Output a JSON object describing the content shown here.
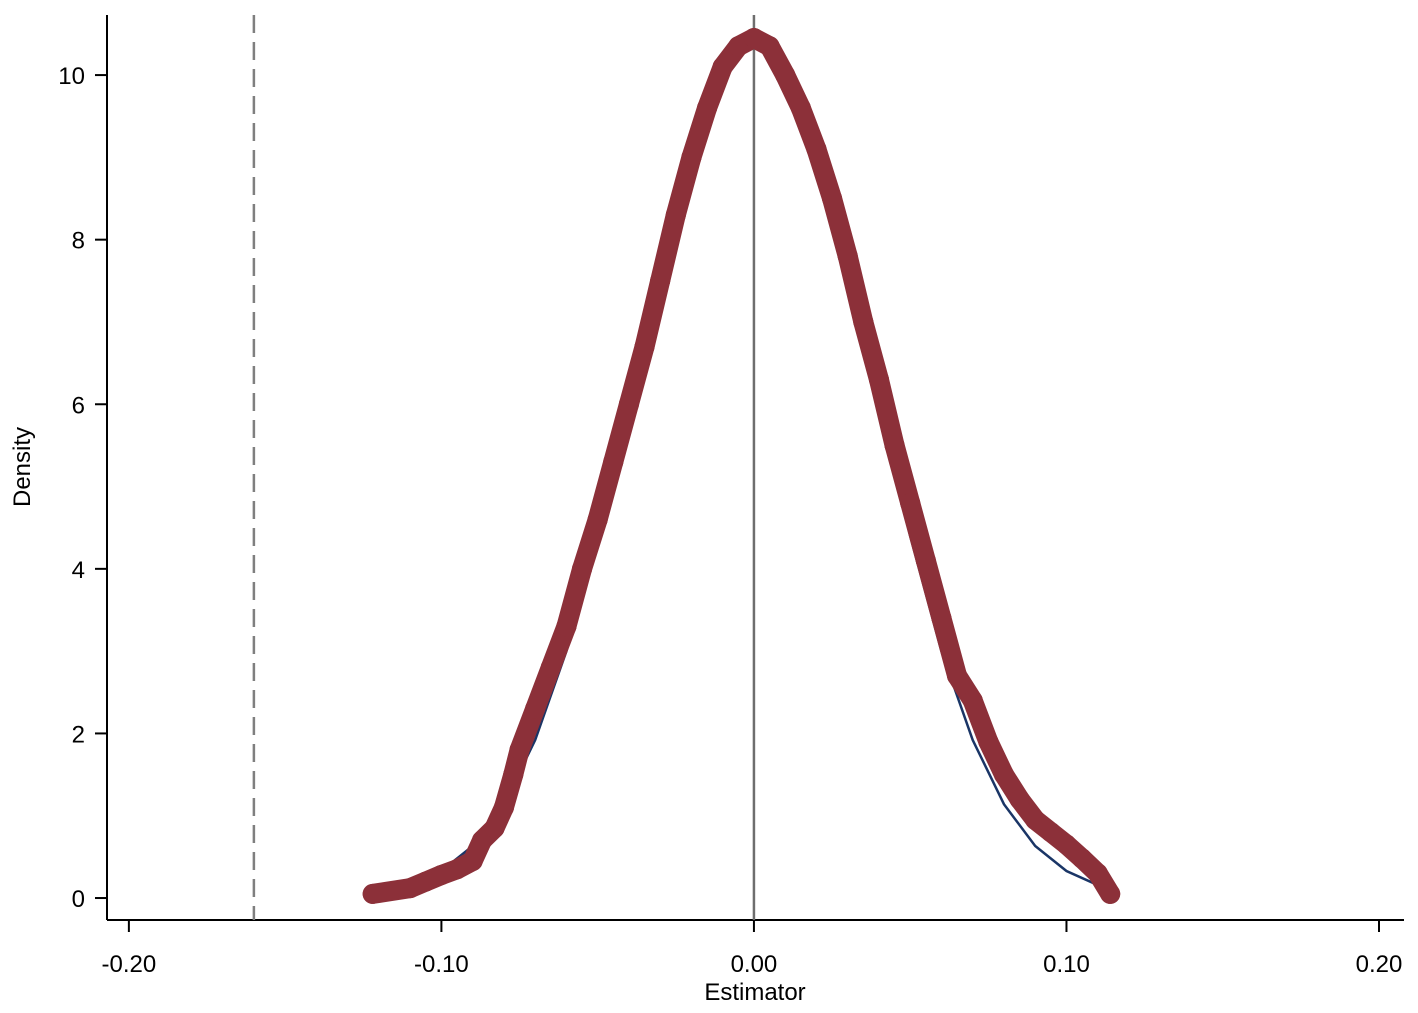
{
  "chart_data": {
    "type": "scatter",
    "xlabel": "Estimator",
    "ylabel": "Density",
    "xlim": [
      -0.207,
      0.208
    ],
    "ylim": [
      -0.267,
      10.73
    ],
    "xticks": [
      {
        "value": -0.2,
        "label": "-0.20"
      },
      {
        "value": -0.1,
        "label": "-0.10"
      },
      {
        "value": 0,
        "label": "0.00"
      },
      {
        "value": 0.1,
        "label": "0.10"
      },
      {
        "value": 0.2,
        "label": "0.20"
      }
    ],
    "yticks": [
      0,
      2,
      4,
      6,
      8,
      10
    ],
    "grid": false,
    "vlines": [
      {
        "x": -0.16,
        "style": "dashed",
        "color": "#7f7f7f"
      },
      {
        "x": 0,
        "style": "solid",
        "color": "#6e6e6e"
      }
    ],
    "series": [
      {
        "type": "line",
        "color": "#1a3566",
        "x": [
          -0.122,
          -0.12,
          -0.11,
          -0.1,
          -0.09,
          -0.08,
          -0.07,
          -0.06,
          -0.05,
          -0.04,
          -0.03,
          -0.02,
          -0.01,
          0,
          0.01,
          0.02,
          0.03,
          0.04,
          0.05,
          0.06,
          0.07,
          0.08,
          0.09,
          0.1,
          0.11,
          0.114
        ],
        "values": [
          0.06,
          0.071,
          0.158,
          0.328,
          0.632,
          1.14,
          1.92,
          3.0,
          4.4,
          6.01,
          7.65,
          9.1,
          10.1,
          10.45,
          10.1,
          9.1,
          7.65,
          6.01,
          4.4,
          3.0,
          1.92,
          1.14,
          0.632,
          0.328,
          0.158,
          0.116
        ]
      },
      {
        "type": "scatter",
        "color": "#8c3039",
        "x": [
          -0.122,
          -0.11,
          -0.105,
          -0.1,
          -0.095,
          -0.09,
          -0.087,
          -0.083,
          -0.08,
          -0.077,
          -0.075,
          -0.07,
          -0.065,
          -0.06,
          -0.055,
          -0.05,
          -0.045,
          -0.04,
          -0.035,
          -0.03,
          -0.025,
          -0.02,
          -0.015,
          -0.01,
          -0.005,
          0,
          0.005,
          0.01,
          0.015,
          0.02,
          0.025,
          0.03,
          0.035,
          0.04,
          0.045,
          0.05,
          0.055,
          0.06,
          0.065,
          0.07,
          0.075,
          0.08,
          0.085,
          0.09,
          0.095,
          0.1,
          0.105,
          0.11,
          0.114
        ],
        "values": [
          0.05,
          0.12,
          0.2,
          0.28,
          0.35,
          0.45,
          0.7,
          0.85,
          1.1,
          1.5,
          1.8,
          2.3,
          2.8,
          3.3,
          4.0,
          4.6,
          5.3,
          6.0,
          6.7,
          7.5,
          8.3,
          9.0,
          9.6,
          10.1,
          10.35,
          10.45,
          10.35,
          10.0,
          9.6,
          9.1,
          8.5,
          7.8,
          7.0,
          6.3,
          5.5,
          4.8,
          4.1,
          3.4,
          2.7,
          2.4,
          1.9,
          1.5,
          1.2,
          0.95,
          0.8,
          0.65,
          0.48,
          0.3,
          0.05
        ]
      }
    ]
  }
}
